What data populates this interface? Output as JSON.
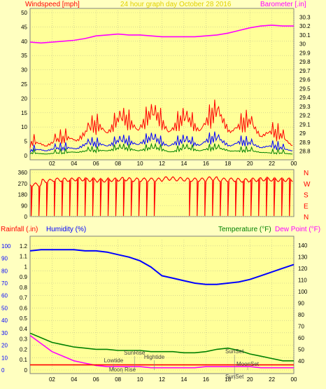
{
  "chart_data": [
    {
      "type": "line",
      "title": "24 hour graph day   October 28 2016",
      "left_axis_label": "Windspeed [mph]",
      "right_axis_label": "Barometer [.in]",
      "x_ticks": [
        "02",
        "04",
        "06",
        "08",
        "10",
        "12",
        "14",
        "16",
        "18",
        "20",
        "22",
        "00"
      ],
      "left_ticks": [
        "0",
        "5",
        "10",
        "15",
        "20",
        "25",
        "30",
        "35",
        "40",
        "45",
        "50"
      ],
      "right_ticks": [
        "28.8",
        "28.9",
        "29",
        "29.1",
        "29.2",
        "29.3",
        "29.4",
        "29.5",
        "29.6",
        "29.7",
        "29.8",
        "29.9",
        "30",
        "30.1",
        "30.2",
        "30.3"
      ],
      "ylim_left": [
        0,
        50
      ],
      "ylim_right": [
        28.75,
        30.35
      ],
      "series": [
        {
          "color": "#ff00ff",
          "axis": "right",
          "x": [
            0,
            1,
            2,
            3,
            4,
            5,
            6,
            7,
            8,
            9,
            10,
            11,
            12,
            13,
            14,
            15,
            16,
            17,
            18,
            19,
            20,
            21,
            22,
            23,
            24
          ],
          "y": [
            30.02,
            30.01,
            30.02,
            30.03,
            30.04,
            30.06,
            30.09,
            30.1,
            30.11,
            30.1,
            30.1,
            30.09,
            30.08,
            30.08,
            30.08,
            30.08,
            30.09,
            30.1,
            30.12,
            30.15,
            30.18,
            30.2,
            30.21,
            30.2,
            30.2
          ]
        },
        {
          "color": "#ff0000",
          "axis": "left",
          "x": [
            0,
            1,
            2,
            3,
            4,
            5,
            6,
            7,
            8,
            9,
            10,
            11,
            12,
            13,
            14,
            15,
            16,
            17,
            18,
            19,
            20,
            21,
            22,
            23,
            24
          ],
          "y": [
            5,
            6,
            6,
            7,
            9,
            10,
            13,
            14,
            15,
            15,
            16,
            17,
            16,
            14,
            15,
            15,
            16,
            18,
            15,
            13,
            14,
            12,
            10,
            8,
            6
          ]
        },
        {
          "color": "#0000ff",
          "axis": "left",
          "x": [
            0,
            1,
            2,
            3,
            4,
            5,
            6,
            7,
            8,
            9,
            10,
            11,
            12,
            13,
            14,
            15,
            16,
            17,
            18,
            19,
            20,
            21,
            22,
            23,
            24
          ],
          "y": [
            2,
            3,
            3,
            3,
            4,
            5,
            5,
            6,
            6,
            6,
            7,
            7,
            6,
            6,
            6,
            6,
            7,
            7,
            6,
            6,
            5,
            5,
            4,
            3,
            3
          ]
        },
        {
          "color": "#008000",
          "axis": "left",
          "x": [
            0,
            1,
            2,
            3,
            4,
            5,
            6,
            7,
            8,
            9,
            10,
            11,
            12,
            13,
            14,
            15,
            16,
            17,
            18,
            19,
            20,
            21,
            22,
            23,
            24
          ],
          "y": [
            1,
            1,
            1,
            1,
            2,
            2,
            2,
            3,
            3,
            3,
            3,
            3,
            3,
            2,
            3,
            3,
            3,
            3,
            3,
            2,
            2,
            2,
            1,
            1,
            1
          ]
        }
      ]
    },
    {
      "type": "scatter",
      "left_ticks": [
        "0",
        "90",
        "180",
        "270",
        "360"
      ],
      "right_labels": [
        "N",
        "W",
        "S",
        "E",
        "N"
      ],
      "ylim": [
        0,
        360
      ],
      "series": [
        {
          "name": "",
          "color": "#ff0000",
          "x": [
            0,
            1,
            2,
            3,
            4,
            5,
            6,
            7,
            8,
            9,
            10,
            11,
            12,
            13,
            14,
            15,
            16,
            17,
            18,
            19,
            20,
            21,
            22,
            23,
            24
          ],
          "y": [
            260,
            290,
            300,
            300,
            305,
            300,
            295,
            300,
            305,
            300,
            300,
            300,
            310,
            305,
            300,
            300,
            310,
            300,
            300,
            295,
            300,
            305,
            300,
            300,
            300
          ]
        }
      ]
    },
    {
      "type": "line",
      "labels": {
        "rainfall": "Rainfall (.in)",
        "humidity": "Humidity (%)",
        "temperature": "Temperature (°F)",
        "dewpoint": "Dew Point (°F)"
      },
      "x_ticks": [
        "02",
        "04",
        "06",
        "08",
        "10",
        "12",
        "14",
        "16",
        "18",
        "20",
        "22",
        "00"
      ],
      "humidity_ticks": [
        "0",
        "10",
        "20",
        "30",
        "40",
        "50",
        "60",
        "70",
        "80",
        "90",
        "100"
      ],
      "rain_ticks": [
        "0",
        "0.1",
        "0.2",
        "0.3",
        "0.4",
        "0.5",
        "0.6",
        "0.7",
        "0.8",
        "0.9",
        "1",
        "1.1",
        "1.2"
      ],
      "temp_ticks": [
        "40",
        "50",
        "60",
        "70",
        "80",
        "90",
        "100",
        "110",
        "120",
        "130",
        "140"
      ],
      "ylim_humidity": [
        0,
        105
      ],
      "ylim_temp": [
        32,
        145
      ],
      "series": [
        {
          "color": "#0000ff",
          "axis": "humidity",
          "x": [
            0,
            1,
            2,
            3,
            4,
            5,
            6,
            7,
            8,
            9,
            10,
            11,
            12,
            13,
            14,
            15,
            16,
            17,
            18,
            19,
            20,
            21,
            22,
            23,
            24
          ],
          "y": [
            96,
            97,
            97,
            97,
            97,
            96,
            96,
            95,
            93,
            91,
            88,
            83,
            76,
            74,
            72,
            70,
            69,
            69,
            70,
            71,
            73,
            76,
            79,
            82,
            85
          ]
        },
        {
          "color": "#008000",
          "axis": "temp",
          "x": [
            0,
            1,
            2,
            3,
            4,
            5,
            6,
            7,
            8,
            9,
            10,
            11,
            12,
            13,
            14,
            15,
            16,
            17,
            18,
            19,
            20,
            21,
            22,
            23,
            24
          ],
          "y": [
            64,
            60,
            56,
            54,
            52,
            51,
            50,
            50,
            49,
            49,
            49,
            48,
            48,
            48,
            47,
            47,
            48,
            50,
            51,
            49,
            46,
            44,
            42,
            40,
            40
          ]
        },
        {
          "color": "#ff00ff",
          "axis": "temp",
          "x": [
            0,
            1,
            2,
            3,
            4,
            5,
            6,
            7,
            8,
            9,
            10,
            11,
            12,
            13,
            14,
            15,
            16,
            17,
            18,
            19,
            20,
            21,
            22,
            23,
            24
          ],
          "y": [
            62,
            55,
            48,
            44,
            40,
            38,
            36,
            35,
            35,
            35,
            35,
            34,
            34,
            34,
            34,
            34,
            35,
            35,
            35,
            35,
            35,
            34,
            34,
            34,
            34
          ]
        },
        {
          "color": "#ff0000",
          "axis": "rain",
          "x": [
            0,
            1,
            2,
            3,
            4,
            5,
            6,
            7,
            8,
            9,
            10,
            11,
            12,
            13,
            14,
            15,
            16,
            17,
            18,
            19,
            20,
            21,
            22,
            23,
            24
          ],
          "y": [
            0.05,
            0.05,
            0.05,
            0.05,
            0.05,
            0.05,
            0.05,
            0.05,
            0.05,
            0.05,
            0.05,
            0.05,
            0.05,
            0.05,
            0.05,
            0.05,
            0.05,
            0.05,
            0.05,
            0.05,
            0.05,
            0.05,
            0.05,
            0.05,
            0.05
          ]
        }
      ],
      "annotations": [
        {
          "text": "Lowtide",
          "x": 7.6
        },
        {
          "text": "Moon Rise",
          "x": 8.4
        },
        {
          "text": "Hightide",
          "x": 11.3
        },
        {
          "text": "SunRise",
          "x": 9.5
        },
        {
          "text": "SunSet",
          "x": 18.6
        },
        {
          "text": "MoonSet",
          "x": 19.8
        },
        {
          "text": "SunSet",
          "x": 18.6
        }
      ]
    }
  ]
}
